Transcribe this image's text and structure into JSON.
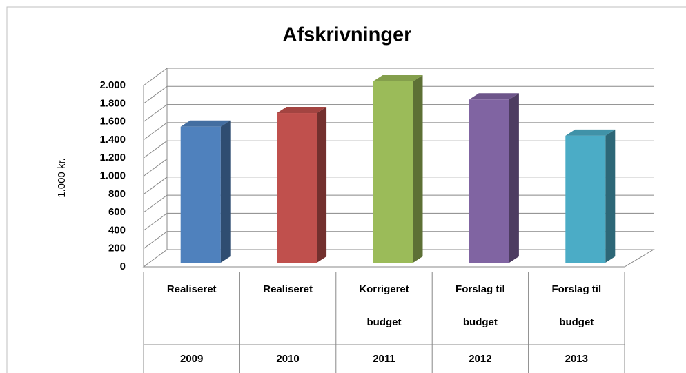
{
  "chart_data": {
    "type": "bar3d",
    "title": "Afskrivninger",
    "y_label": "1.000 kr.",
    "categories": [
      "2009",
      "2010",
      "2011",
      "2012",
      "2013"
    ],
    "category_groups": [
      [
        "Realiseret"
      ],
      [
        "Realiseret"
      ],
      [
        "Korrigeret",
        "budget"
      ],
      [
        "Forslag til",
        "budget"
      ],
      [
        "Forslag til",
        "budget"
      ]
    ],
    "values": [
      1500,
      1650,
      2000,
      1800,
      1400
    ],
    "colors": [
      "#4f81bd",
      "#c0504d",
      "#9bbb59",
      "#8064a2",
      "#4bacc6"
    ],
    "ylim": [
      0,
      2000
    ],
    "yticks": [
      0,
      200,
      400,
      600,
      800,
      {
        "value": 1000,
        "label": "1.000"
      },
      {
        "value": 1200,
        "label": "1.200"
      },
      {
        "value": 1400,
        "label": "1.400"
      },
      {
        "value": 1600,
        "label": "1.600"
      },
      {
        "value": 1800,
        "label": "1.800"
      },
      {
        "value": 2000,
        "label": "2.000"
      }
    ],
    "grid": true
  }
}
